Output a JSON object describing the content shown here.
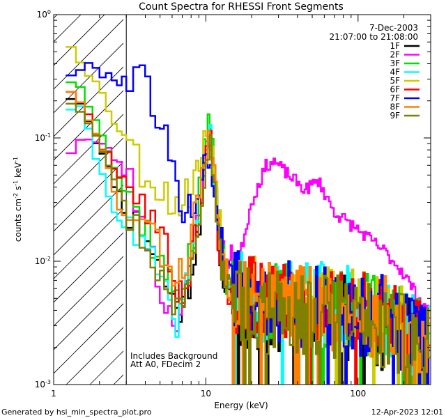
{
  "chart_data": {
    "type": "line",
    "title": "Count Spectra for RHESSI Front Segments",
    "xlabel": "Energy (keV)",
    "ylabel_parts": {
      "base": "counts cm",
      "exp1": "-2",
      "mid": " s",
      "exp2": "-1",
      "unit": " keV",
      "exp3": "-1"
    },
    "xscale": "log",
    "yscale": "log",
    "xlim": [
      1,
      300
    ],
    "ylim": [
      0.001,
      1
    ],
    "x_ticks": [
      {
        "value": 1,
        "label": "1"
      },
      {
        "value": 10,
        "label": "10"
      },
      {
        "value": 100,
        "label": "100"
      }
    ],
    "y_ticks": [
      {
        "value": 1,
        "base": "10",
        "exp": "0"
      },
      {
        "value": 0.1,
        "base": "10",
        "exp": "-1"
      },
      {
        "value": 0.01,
        "base": "10",
        "exp": "-2"
      },
      {
        "value": 0.001,
        "base": "10",
        "exp": "-3"
      }
    ],
    "date": "7-Dec-2003",
    "time_range": "21:07:00 to 21:08:00",
    "annotation_lines": [
      "Includes Background",
      "Att A0, FDecim 2"
    ],
    "hatched_region_x": [
      1,
      3
    ],
    "footer_left": "Generated by hsi_min_spectra_plot.pro",
    "footer_right": "12-Apr-2023 12:01",
    "series": [
      {
        "name": "1F",
        "color": "#000000",
        "seed": 11,
        "anchors": [
          [
            1.3,
            0.22
          ],
          [
            1.5,
            0.2
          ],
          [
            1.8,
            0.12
          ],
          [
            2.2,
            0.06
          ],
          [
            2.6,
            0.04
          ],
          [
            3.0,
            0.024
          ],
          [
            4.0,
            0.018
          ],
          [
            5.0,
            0.009
          ],
          [
            6.0,
            0.005
          ],
          [
            7.0,
            0.004
          ],
          [
            8.0,
            0.008
          ],
          [
            9.0,
            0.02
          ],
          [
            10.0,
            0.06
          ],
          [
            10.6,
            0.1
          ],
          [
            11.3,
            0.05
          ],
          [
            12.5,
            0.01
          ],
          [
            14.0,
            0.005
          ],
          [
            20,
            0.004
          ],
          [
            30,
            0.0035
          ],
          [
            50,
            0.0033
          ],
          [
            80,
            0.0035
          ],
          [
            120,
            0.003
          ],
          [
            200,
            0.0025
          ],
          [
            290,
            0.0015
          ]
        ]
      },
      {
        "name": "2F",
        "color": "#ff00ff",
        "seed": 23,
        "anchors": [
          [
            1.3,
            0.08
          ],
          [
            1.5,
            0.1
          ],
          [
            2.0,
            0.09
          ],
          [
            2.5,
            0.07
          ],
          [
            3.0,
            0.05
          ],
          [
            4.0,
            0.02
          ],
          [
            5.0,
            0.006
          ],
          [
            6.0,
            0.0035
          ],
          [
            7.0,
            0.004
          ],
          [
            8.0,
            0.008
          ],
          [
            9.0,
            0.025
          ],
          [
            10.0,
            0.07
          ],
          [
            10.6,
            0.09
          ],
          [
            11.3,
            0.05
          ],
          [
            12.5,
            0.012
          ],
          [
            14,
            0.009
          ],
          [
            17,
            0.012
          ],
          [
            20,
            0.03
          ],
          [
            25,
            0.06
          ],
          [
            28,
            0.065
          ],
          [
            35,
            0.05
          ],
          [
            45,
            0.038
          ],
          [
            55,
            0.045
          ],
          [
            70,
            0.025
          ],
          [
            100,
            0.018
          ],
          [
            150,
            0.012
          ],
          [
            200,
            0.008
          ],
          [
            250,
            0.005
          ],
          [
            290,
            0.0038
          ]
        ]
      },
      {
        "name": "3F",
        "color": "#00e000",
        "seed": 37,
        "anchors": [
          [
            1.3,
            0.3
          ],
          [
            1.5,
            0.25
          ],
          [
            2.0,
            0.14
          ],
          [
            2.5,
            0.06
          ],
          [
            3.0,
            0.035
          ],
          [
            4.0,
            0.02
          ],
          [
            5.0,
            0.01
          ],
          [
            6.0,
            0.006
          ],
          [
            7.0,
            0.006
          ],
          [
            8.0,
            0.012
          ],
          [
            9.0,
            0.03
          ],
          [
            10.0,
            0.09
          ],
          [
            10.6,
            0.15
          ],
          [
            11.3,
            0.06
          ],
          [
            12.5,
            0.012
          ],
          [
            14,
            0.007
          ],
          [
            20,
            0.005
          ],
          [
            40,
            0.0045
          ],
          [
            80,
            0.004
          ],
          [
            150,
            0.0035
          ],
          [
            290,
            0.002
          ]
        ]
      },
      {
        "name": "4F",
        "color": "#00ffff",
        "seed": 41,
        "anchors": [
          [
            1.3,
            0.18
          ],
          [
            1.5,
            0.16
          ],
          [
            1.8,
            0.09
          ],
          [
            2.2,
            0.04
          ],
          [
            2.6,
            0.025
          ],
          [
            3.0,
            0.018
          ],
          [
            4.0,
            0.012
          ],
          [
            5.0,
            0.008
          ],
          [
            6.0,
            0.003
          ],
          [
            7.0,
            0.004
          ],
          [
            8.0,
            0.01
          ],
          [
            9.0,
            0.025
          ],
          [
            10.0,
            0.08
          ],
          [
            10.6,
            0.12
          ],
          [
            11.3,
            0.05
          ],
          [
            12.5,
            0.01
          ],
          [
            14,
            0.006
          ],
          [
            20,
            0.005
          ],
          [
            40,
            0.0045
          ],
          [
            80,
            0.0045
          ],
          [
            150,
            0.0035
          ],
          [
            290,
            0.002
          ]
        ]
      },
      {
        "name": "5F",
        "color": "#cccc00",
        "seed": 53,
        "anchors": [
          [
            1.3,
            0.58
          ],
          [
            1.5,
            0.45
          ],
          [
            2.0,
            0.25
          ],
          [
            2.5,
            0.14
          ],
          [
            3.0,
            0.1
          ],
          [
            4.0,
            0.05
          ],
          [
            5.0,
            0.04
          ],
          [
            6.0,
            0.03
          ],
          [
            7.0,
            0.03
          ],
          [
            8.0,
            0.04
          ],
          [
            9.0,
            0.06
          ],
          [
            10.0,
            0.1
          ],
          [
            10.6,
            0.13
          ],
          [
            11.3,
            0.07
          ],
          [
            12.5,
            0.02
          ],
          [
            14,
            0.008
          ],
          [
            20,
            0.005
          ],
          [
            40,
            0.0045
          ],
          [
            80,
            0.004
          ],
          [
            150,
            0.0035
          ],
          [
            290,
            0.002
          ]
        ]
      },
      {
        "name": "6F",
        "color": "#ff0000",
        "seed": 67,
        "anchors": [
          [
            1.3,
            0.25
          ],
          [
            1.5,
            0.2
          ],
          [
            2.0,
            0.1
          ],
          [
            2.5,
            0.06
          ],
          [
            3.0,
            0.045
          ],
          [
            4.0,
            0.03
          ],
          [
            5.0,
            0.018
          ],
          [
            6.0,
            0.008
          ],
          [
            7.0,
            0.005
          ],
          [
            8.0,
            0.01
          ],
          [
            9.0,
            0.025
          ],
          [
            10.0,
            0.07
          ],
          [
            10.6,
            0.1
          ],
          [
            11.3,
            0.05
          ],
          [
            12.5,
            0.01
          ],
          [
            14,
            0.006
          ],
          [
            20,
            0.005
          ],
          [
            40,
            0.004
          ],
          [
            80,
            0.004
          ],
          [
            150,
            0.0035
          ],
          [
            290,
            0.002
          ]
        ]
      },
      {
        "name": "7F",
        "color": "#0000ff",
        "seed": 79,
        "anchors": [
          [
            1.3,
            0.34
          ],
          [
            1.6,
            0.37
          ],
          [
            2.0,
            0.36
          ],
          [
            2.5,
            0.3
          ],
          [
            3.0,
            0.3
          ],
          [
            3.5,
            0.34
          ],
          [
            4.0,
            0.29
          ],
          [
            4.5,
            0.2
          ],
          [
            5.0,
            0.15
          ],
          [
            5.5,
            0.1
          ],
          [
            6.0,
            0.05
          ],
          [
            7.0,
            0.03
          ],
          [
            8.0,
            0.025
          ],
          [
            9.0,
            0.04
          ],
          [
            10.0,
            0.06
          ],
          [
            10.6,
            0.07
          ],
          [
            11.3,
            0.04
          ],
          [
            12.5,
            0.015
          ],
          [
            14,
            0.008
          ],
          [
            20,
            0.005
          ],
          [
            40,
            0.0045
          ],
          [
            80,
            0.004
          ],
          [
            150,
            0.0035
          ],
          [
            290,
            0.002
          ]
        ]
      },
      {
        "name": "8F",
        "color": "#ff8000",
        "seed": 83,
        "anchors": [
          [
            1.3,
            0.25
          ],
          [
            1.5,
            0.18
          ],
          [
            2.0,
            0.09
          ],
          [
            2.5,
            0.04
          ],
          [
            2.8,
            0.02
          ],
          [
            3.0,
            0.025
          ],
          [
            4.0,
            0.02
          ],
          [
            5.0,
            0.012
          ],
          [
            6.0,
            0.008
          ],
          [
            7.0,
            0.008
          ],
          [
            8.0,
            0.015
          ],
          [
            9.0,
            0.035
          ],
          [
            10.0,
            0.08
          ],
          [
            10.6,
            0.09
          ],
          [
            11.3,
            0.05
          ],
          [
            12.5,
            0.012
          ],
          [
            14,
            0.007
          ],
          [
            20,
            0.005
          ],
          [
            40,
            0.0045
          ],
          [
            80,
            0.004
          ],
          [
            150,
            0.0035
          ],
          [
            290,
            0.002
          ]
        ]
      },
      {
        "name": "9F",
        "color": "#808000",
        "seed": 97,
        "anchors": [
          [
            1.3,
            0.2
          ],
          [
            1.5,
            0.18
          ],
          [
            2.0,
            0.1
          ],
          [
            2.5,
            0.05
          ],
          [
            3.0,
            0.025
          ],
          [
            4.0,
            0.015
          ],
          [
            5.0,
            0.008
          ],
          [
            6.0,
            0.004
          ],
          [
            7.0,
            0.005
          ],
          [
            8.0,
            0.01
          ],
          [
            9.0,
            0.025
          ],
          [
            10.0,
            0.07
          ],
          [
            10.6,
            0.1
          ],
          [
            11.3,
            0.05
          ],
          [
            12.5,
            0.01
          ],
          [
            14,
            0.006
          ],
          [
            20,
            0.004
          ],
          [
            40,
            0.0035
          ],
          [
            80,
            0.0035
          ],
          [
            150,
            0.003
          ],
          [
            290,
            0.002
          ]
        ]
      }
    ]
  }
}
